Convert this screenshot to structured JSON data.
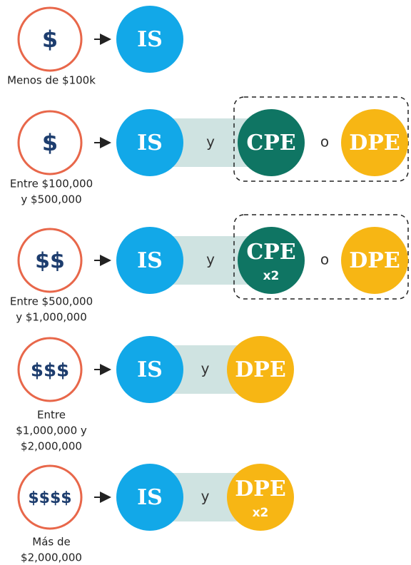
{
  "rows": [
    {
      "icon": "$",
      "label": [
        "Menos de $100k"
      ],
      "nodes": [
        {
          "text": "IS"
        }
      ],
      "connectors": []
    },
    {
      "icon": "$",
      "label": [
        "Entre $100,000",
        "y $500,000"
      ],
      "nodes": [
        {
          "text": "IS"
        },
        {
          "text": "CPE"
        },
        {
          "text": "DPE"
        }
      ],
      "connectors": [
        "y",
        "o"
      ]
    },
    {
      "icon": "$$",
      "label": [
        "Entre $500,000",
        "y $1,000,000"
      ],
      "nodes": [
        {
          "text": "IS"
        },
        {
          "text": "CPE",
          "sub": "x2"
        },
        {
          "text": "DPE"
        }
      ],
      "connectors": [
        "y",
        "o"
      ]
    },
    {
      "icon": "$$$",
      "label": [
        "Entre",
        "$1,000,000 y",
        "$2,000,000"
      ],
      "nodes": [
        {
          "text": "IS"
        },
        {
          "text": "DPE"
        }
      ],
      "connectors": [
        "y"
      ]
    },
    {
      "icon": "$$$$",
      "label": [
        "Más de",
        "$2,000,000"
      ],
      "nodes": [
        {
          "text": "IS"
        },
        {
          "text": "DPE",
          "sub": "x2"
        }
      ],
      "connectors": [
        "y"
      ]
    }
  ]
}
